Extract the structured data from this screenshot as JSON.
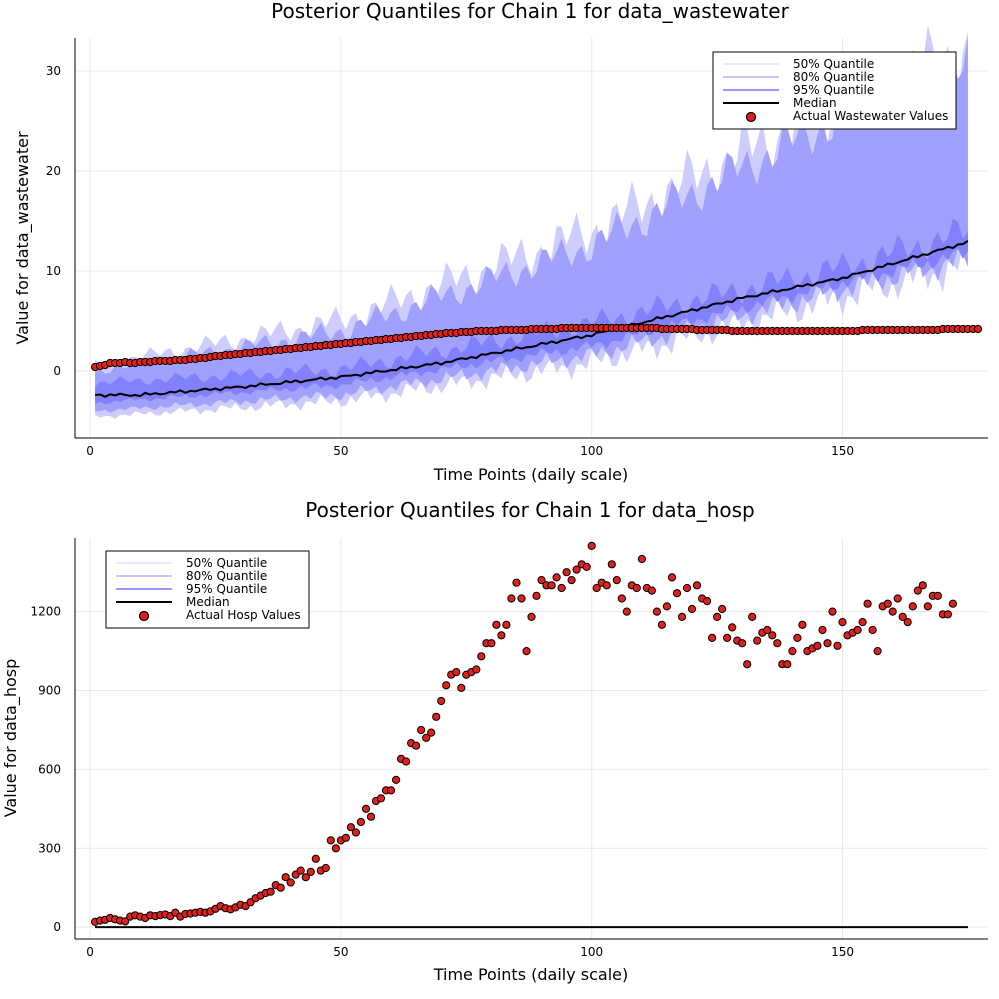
{
  "figure": {
    "background": "#ffffff"
  },
  "chart_data": [
    {
      "type": "area",
      "title": "Posterior Quantiles for Chain 1 for data_wastewater",
      "xlabel": "Time Points (daily scale)",
      "ylabel": "Value for data_wastewater",
      "xlim": [
        -3,
        179
      ],
      "ylim": [
        -6.7,
        33.3
      ],
      "xticks": [
        0,
        50,
        100,
        150
      ],
      "yticks": [
        0,
        10,
        20,
        30
      ],
      "grid": true,
      "legend_position": "top-right",
      "legend": [
        {
          "label": "50% Quantile",
          "kind": "line",
          "color": "#dcdcff"
        },
        {
          "label": "80% Quantile",
          "kind": "line",
          "color": "#a0a0ff"
        },
        {
          "label": "95% Quantile",
          "kind": "line",
          "color": "#5a5aff"
        },
        {
          "label": "Median",
          "kind": "line",
          "color": "#000000"
        },
        {
          "label": "Actual Wastewater Values",
          "kind": "marker",
          "color": "#e0201b"
        }
      ],
      "bands": {
        "x_start": 1,
        "x_end": 175,
        "median": [
          [
            1,
            -2.4
          ],
          [
            10,
            -2.4
          ],
          [
            30,
            -1.6
          ],
          [
            50,
            -0.6
          ],
          [
            70,
            0.8
          ],
          [
            100,
            3.6
          ],
          [
            130,
            7.3
          ],
          [
            150,
            9.3
          ],
          [
            175,
            12.9
          ]
        ],
        "outer": {
          "lower": [
            [
              1,
              -4.6
            ],
            [
              50,
              -3.0
            ],
            [
              100,
              0.8
            ],
            [
              150,
              7.4
            ],
            [
              175,
              10.6
            ]
          ],
          "upper": [
            [
              1,
              0.6
            ],
            [
              50,
              5.0
            ],
            [
              100,
              14.0
            ],
            [
              150,
              27.0
            ],
            [
              175,
              32.0
            ]
          ]
        },
        "middle": {
          "lower": [
            [
              1,
              -4.0
            ],
            [
              50,
              -2.4
            ],
            [
              100,
              1.6
            ],
            [
              150,
              8.2
            ],
            [
              175,
              11.2
            ]
          ],
          "upper": [
            [
              1,
              0.0
            ],
            [
              50,
              4.0
            ],
            [
              100,
              12.6
            ],
            [
              150,
              25.5
            ],
            [
              175,
              30.5
            ]
          ]
        },
        "inner": {
          "lower": [
            [
              1,
              -3.2
            ],
            [
              50,
              -1.4
            ],
            [
              100,
              2.5
            ],
            [
              150,
              8.8
            ],
            [
              175,
              11.8
            ]
          ],
          "upper": [
            [
              1,
              -1.2
            ],
            [
              50,
              0.2
            ],
            [
              100,
              4.8
            ],
            [
              150,
              10.4
            ],
            [
              175,
              14.0
            ]
          ]
        }
      },
      "actual": {
        "name": "Actual Wastewater Values",
        "x_start": 1,
        "values": [
          0.4,
          0.5,
          0.6,
          0.8,
          0.8,
          0.8,
          0.9,
          0.8,
          0.8,
          0.9,
          0.9,
          0.9,
          1.0,
          1.0,
          1.0,
          1.0,
          1.1,
          1.1,
          1.1,
          1.2,
          1.2,
          1.3,
          1.3,
          1.4,
          1.5,
          1.5,
          1.6,
          1.6,
          1.7,
          1.7,
          1.8,
          1.8,
          1.9,
          1.9,
          2.0,
          2.0,
          2.1,
          2.1,
          2.2,
          2.2,
          2.3,
          2.3,
          2.4,
          2.4,
          2.5,
          2.5,
          2.6,
          2.6,
          2.7,
          2.7,
          2.8,
          2.8,
          2.9,
          2.9,
          3.0,
          3.0,
          3.1,
          3.1,
          3.2,
          3.2,
          3.3,
          3.3,
          3.4,
          3.4,
          3.5,
          3.5,
          3.6,
          3.6,
          3.7,
          3.7,
          3.8,
          3.8,
          3.8,
          3.9,
          3.9,
          3.9,
          4.0,
          4.0,
          4.0,
          4.0,
          4.0,
          4.1,
          4.1,
          4.1,
          4.1,
          4.1,
          4.1,
          4.2,
          4.2,
          4.2,
          4.2,
          4.2,
          4.2,
          4.3,
          4.3,
          4.3,
          4.3,
          4.3,
          4.3,
          4.3,
          4.3,
          4.3,
          4.3,
          4.3,
          4.3,
          4.3,
          4.3,
          4.3,
          4.3,
          4.3,
          4.3,
          4.3,
          4.3,
          4.2,
          4.2,
          4.2,
          4.2,
          4.2,
          4.2,
          4.2,
          4.1,
          4.1,
          4.1,
          4.1,
          4.1,
          4.1,
          4.1,
          4.0,
          4.0,
          4.0,
          4.0,
          4.0,
          4.0,
          4.0,
          4.0,
          4.0,
          4.0,
          4.0,
          4.0,
          4.0,
          4.0,
          4.0,
          4.0,
          4.0,
          4.0,
          4.0,
          4.0,
          4.0,
          4.0,
          4.0,
          4.0,
          4.0,
          4.0,
          4.1,
          4.1,
          4.1,
          4.1,
          4.1,
          4.1,
          4.1,
          4.1,
          4.1,
          4.1,
          4.1,
          4.1,
          4.1,
          4.1,
          4.1,
          4.1,
          4.2,
          4.2,
          4.2,
          4.2,
          4.2,
          4.2,
          4.2,
          4.2
        ]
      }
    },
    {
      "type": "scatter",
      "title": "Posterior Quantiles for Chain 1 for data_hosp",
      "xlabel": "Time Points (daily scale)",
      "ylabel": "Value for data_hosp",
      "xlim": [
        -3,
        179
      ],
      "ylim": [
        -45,
        1480
      ],
      "xticks": [
        0,
        50,
        100,
        150
      ],
      "yticks": [
        0,
        300,
        600,
        900,
        1200
      ],
      "grid": true,
      "legend_position": "top-left",
      "legend": [
        {
          "label": "50% Quantile",
          "kind": "line",
          "color": "#dcdcff"
        },
        {
          "label": "80% Quantile",
          "kind": "line",
          "color": "#a0a0ff"
        },
        {
          "label": "95% Quantile",
          "kind": "line",
          "color": "#5a5aff"
        },
        {
          "label": "Median",
          "kind": "line",
          "color": "#000000"
        },
        {
          "label": "Actual Hosp Values",
          "kind": "marker",
          "color": "#e0201b"
        }
      ],
      "median": {
        "x_start": 1,
        "x_end": 175,
        "value": 0
      },
      "actual": {
        "name": "Actual Hosp Values",
        "x_start": 1,
        "values": [
          20,
          25,
          28,
          35,
          30,
          25,
          22,
          40,
          45,
          40,
          35,
          45,
          42,
          46,
          48,
          42,
          55,
          40,
          50,
          52,
          55,
          58,
          55,
          60,
          70,
          80,
          72,
          68,
          75,
          85,
          80,
          95,
          110,
          120,
          130,
          135,
          160,
          150,
          190,
          170,
          200,
          215,
          190,
          210,
          260,
          215,
          225,
          330,
          300,
          330,
          340,
          380,
          360,
          400,
          450,
          420,
          480,
          490,
          520,
          520,
          560,
          640,
          630,
          700,
          690,
          750,
          720,
          740,
          800,
          860,
          920,
          960,
          970,
          910,
          960,
          970,
          980,
          1030,
          1080,
          1080,
          1150,
          1110,
          1150,
          1250,
          1310,
          1250,
          1050,
          1180,
          1260,
          1320,
          1300,
          1300,
          1330,
          1290,
          1350,
          1320,
          1360,
          1380,
          1370,
          1450,
          1290,
          1310,
          1300,
          1380,
          1320,
          1250,
          1200,
          1300,
          1290,
          1400,
          1290,
          1280,
          1200,
          1150,
          1220,
          1330,
          1270,
          1180,
          1290,
          1210,
          1300,
          1250,
          1240,
          1100,
          1180,
          1210,
          1100,
          1140,
          1090,
          1080,
          1000,
          1180,
          1090,
          1120,
          1130,
          1110,
          1080,
          1000,
          1000,
          1050,
          1100,
          1150,
          1050,
          1060,
          1070,
          1130,
          1080,
          1200,
          1070,
          1160,
          1110,
          1120,
          1130,
          1160,
          1230,
          1130,
          1050,
          1220,
          1230,
          1200,
          1250,
          1180,
          1160,
          1220,
          1280,
          1300,
          1220,
          1260,
          1260,
          1190,
          1190,
          1230
        ]
      }
    }
  ]
}
